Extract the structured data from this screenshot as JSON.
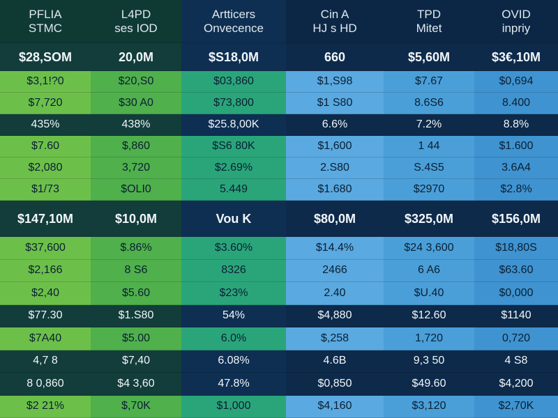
{
  "header": {
    "columns": [
      [
        "PFLIA",
        "STMC"
      ],
      [
        "L4PD",
        "ses IOD"
      ],
      [
        "Artticers",
        "Onvecence"
      ],
      [
        "Cin A",
        "HJ s HD"
      ],
      [
        "TPD",
        "Mitet"
      ],
      [
        "OVID",
        "inpriy"
      ]
    ]
  },
  "rows": [
    [
      "$28,SOM",
      "20,0M",
      "$S18,0M",
      "660",
      "$5,60M",
      "$3€,10M"
    ],
    [
      "$3,1!?0",
      "$20,S0",
      "$03,860",
      "$1,S98",
      "$7.67",
      "$0,694"
    ],
    [
      "$7,720",
      "$30 A0",
      "$73,800",
      "$1 S80",
      "8.6S6",
      "8.400"
    ],
    [
      "435%",
      "438%",
      "$25.8,00K",
      "6.6%",
      "7.2%",
      "8.8%"
    ],
    [
      "$7.60",
      "$,860",
      "$S6 80K",
      "$1,600",
      "1 44",
      "$1.600"
    ],
    [
      "$2,080",
      "3,720",
      "$2.69%",
      "2.S80",
      "S.4S5",
      "3.6A4"
    ],
    [
      "$1/73",
      "$OLI0",
      "5.449",
      "$1.680",
      "$2970",
      "$2.8%"
    ],
    [
      "$147,10M",
      "$10,0M",
      "Vou K",
      "$80,0M",
      "$325,0M",
      "$156,0M"
    ],
    [
      "$37,600",
      "$.86%",
      "$3.60%",
      "$14.4%",
      "$24 3,600",
      "$18,80S"
    ],
    [
      "$2,166",
      "8 S6",
      "8326",
      "2466",
      "6 A6",
      "$63.60"
    ],
    [
      "$2,40",
      "$5.60",
      "$23%",
      "2.40",
      "$U.40",
      "$0,000"
    ],
    [
      "$77.30",
      "$1.S80",
      "54%",
      "$4,880",
      "$12.60",
      "$1140"
    ],
    [
      "$7A40",
      "$5.00",
      "6.0%",
      "$,258",
      "1,720",
      "0,720"
    ],
    [
      "4,7 8",
      "$7,40",
      "6.08%",
      "4.6B",
      "9,3 50",
      "4 S8"
    ],
    [
      "8 0,860",
      "$4 3,60",
      "47.8%",
      "$0,850",
      "$49.60",
      "$4,200"
    ],
    [
      "$2 21%",
      "$,70K",
      "$1,000",
      "$4,160",
      "$3,120",
      "$2,70K"
    ]
  ]
}
